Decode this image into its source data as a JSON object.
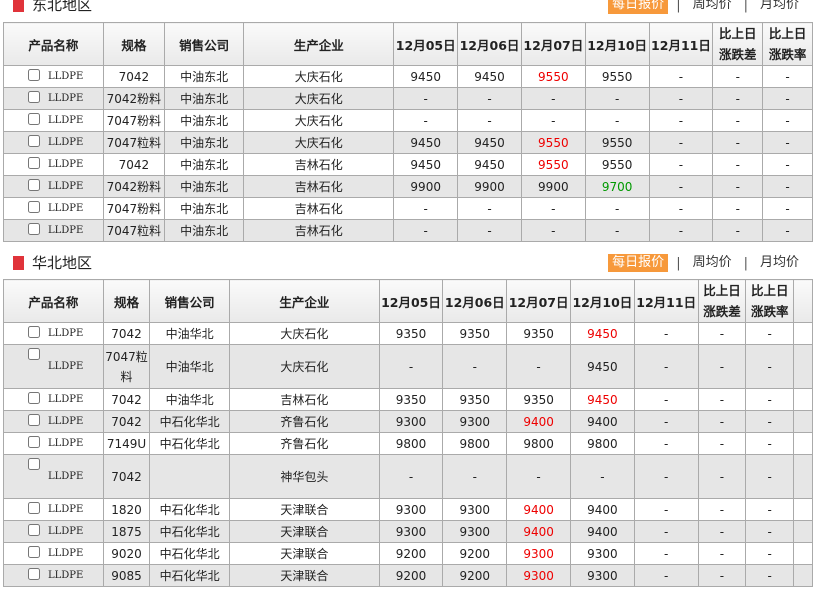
{
  "tabs": {
    "daily": "每日报价",
    "weekly": "周均价",
    "monthly": "月均价"
  },
  "sections": [
    {
      "title": "东北地区",
      "headers": [
        "产品名称",
        "规格",
        "销售公司",
        "生产企业",
        "12月05日",
        "12月06日",
        "12月07日",
        "12月10日",
        "12月11日",
        "比上日涨跌差",
        "比上日涨跌率"
      ],
      "rows": [
        {
          "name": "LLDPE",
          "spec": "7042",
          "company": "中油东北",
          "producer": "大庆石化",
          "prices": [
            "9450",
            "9450",
            "9550",
            "9550",
            "-"
          ],
          "colors": [
            "",
            "",
            "up",
            "",
            ""
          ],
          "diff": "-",
          "rate": "-"
        },
        {
          "name": "LLDPE",
          "spec": "7042粉料",
          "company": "中油东北",
          "producer": "大庆石化",
          "prices": [
            "-",
            "-",
            "-",
            "-",
            "-"
          ],
          "colors": [
            "",
            "",
            "",
            "",
            ""
          ],
          "diff": "-",
          "rate": "-"
        },
        {
          "name": "LLDPE",
          "spec": "7047粉料",
          "company": "中油东北",
          "producer": "大庆石化",
          "prices": [
            "-",
            "-",
            "-",
            "-",
            "-"
          ],
          "colors": [
            "",
            "",
            "",
            "",
            ""
          ],
          "diff": "-",
          "rate": "-"
        },
        {
          "name": "LLDPE",
          "spec": "7047粒料",
          "company": "中油东北",
          "producer": "大庆石化",
          "prices": [
            "9450",
            "9450",
            "9550",
            "9550",
            "-"
          ],
          "colors": [
            "",
            "",
            "up",
            "",
            ""
          ],
          "diff": "-",
          "rate": "-"
        },
        {
          "name": "LLDPE",
          "spec": "7042",
          "company": "中油东北",
          "producer": "吉林石化",
          "prices": [
            "9450",
            "9450",
            "9550",
            "9550",
            "-"
          ],
          "colors": [
            "",
            "",
            "up",
            "",
            ""
          ],
          "diff": "-",
          "rate": "-"
        },
        {
          "name": "LLDPE",
          "spec": "7042粉料",
          "company": "中油东北",
          "producer": "吉林石化",
          "prices": [
            "9900",
            "9900",
            "9900",
            "9700",
            "-"
          ],
          "colors": [
            "",
            "",
            "",
            "down",
            ""
          ],
          "diff": "-",
          "rate": "-"
        },
        {
          "name": "LLDPE",
          "spec": "7047粉料",
          "company": "中油东北",
          "producer": "吉林石化",
          "prices": [
            "-",
            "-",
            "-",
            "-",
            "-"
          ],
          "colors": [
            "",
            "",
            "",
            "",
            ""
          ],
          "diff": "-",
          "rate": "-"
        },
        {
          "name": "LLDPE",
          "spec": "7047粒料",
          "company": "中油东北",
          "producer": "吉林石化",
          "prices": [
            "-",
            "-",
            "-",
            "-",
            "-"
          ],
          "colors": [
            "",
            "",
            "",
            "",
            ""
          ],
          "diff": "-",
          "rate": "-"
        }
      ]
    },
    {
      "title": "华北地区",
      "headers": [
        "产品名称",
        "规格",
        "销售公司",
        "生产企业",
        "12月05日",
        "12月06日",
        "12月07日",
        "12月10日",
        "12月11日",
        "比上日涨跌差",
        "比上日涨跌率"
      ],
      "rows": [
        {
          "name": "LLDPE",
          "spec": "7042",
          "company": "中油华北",
          "producer": "大庆石化",
          "prices": [
            "9350",
            "9350",
            "9350",
            "9450",
            "-"
          ],
          "colors": [
            "",
            "",
            "",
            "up",
            ""
          ],
          "diff": "-",
          "rate": "-"
        },
        {
          "name": "LLDPE",
          "spec": "7047粒料",
          "company": "中油华北",
          "producer": "大庆石化",
          "prices": [
            "-",
            "-",
            "-",
            "9450",
            "-"
          ],
          "colors": [
            "",
            "",
            "",
            "",
            ""
          ],
          "diff": "-",
          "rate": "-",
          "tall": true
        },
        {
          "name": "LLDPE",
          "spec": "7042",
          "company": "中油华北",
          "producer": "吉林石化",
          "prices": [
            "9350",
            "9350",
            "9350",
            "9450",
            "-"
          ],
          "colors": [
            "",
            "",
            "",
            "up",
            ""
          ],
          "diff": "-",
          "rate": "-"
        },
        {
          "name": "LLDPE",
          "spec": "7042",
          "company": "中石化华北",
          "producer": "齐鲁石化",
          "prices": [
            "9300",
            "9300",
            "9400",
            "9400",
            "-"
          ],
          "colors": [
            "",
            "",
            "up",
            "",
            ""
          ],
          "diff": "-",
          "rate": "-"
        },
        {
          "name": "LLDPE",
          "spec": "7149U",
          "company": "中石化华北",
          "producer": "齐鲁石化",
          "prices": [
            "9800",
            "9800",
            "9800",
            "9800",
            "-"
          ],
          "colors": [
            "",
            "",
            "",
            "",
            ""
          ],
          "diff": "-",
          "rate": "-"
        },
        {
          "name": "LLDPE",
          "spec": "7042",
          "company": "",
          "producer": "神华包头",
          "prices": [
            "-",
            "-",
            "-",
            "-",
            "-"
          ],
          "colors": [
            "",
            "",
            "",
            "",
            ""
          ],
          "diff": "-",
          "rate": "-",
          "tall": true
        },
        {
          "name": "LLDPE",
          "spec": "1820",
          "company": "中石化华北",
          "producer": "天津联合",
          "prices": [
            "9300",
            "9300",
            "9400",
            "9400",
            "-"
          ],
          "colors": [
            "",
            "",
            "up",
            "",
            ""
          ],
          "diff": "-",
          "rate": "-"
        },
        {
          "name": "LLDPE",
          "spec": "1875",
          "company": "中石化华北",
          "producer": "天津联合",
          "prices": [
            "9300",
            "9300",
            "9400",
            "9400",
            "-"
          ],
          "colors": [
            "",
            "",
            "up",
            "",
            ""
          ],
          "diff": "-",
          "rate": "-"
        },
        {
          "name": "LLDPE",
          "spec": "9020",
          "company": "中石化华北",
          "producer": "天津联合",
          "prices": [
            "9200",
            "9200",
            "9300",
            "9300",
            "-"
          ],
          "colors": [
            "",
            "",
            "up",
            "",
            ""
          ],
          "diff": "-",
          "rate": "-"
        },
        {
          "name": "LLDPE",
          "spec": "9085",
          "company": "中石化华北",
          "producer": "天津联合",
          "prices": [
            "9200",
            "9200",
            "9300",
            "9300",
            "-"
          ],
          "colors": [
            "",
            "",
            "up",
            "",
            ""
          ],
          "diff": "-",
          "rate": "-"
        }
      ]
    }
  ],
  "colors": {
    "accent": "#f7993b",
    "section_mark": "#e0333a",
    "up": "#ee0000",
    "down": "#009900"
  }
}
